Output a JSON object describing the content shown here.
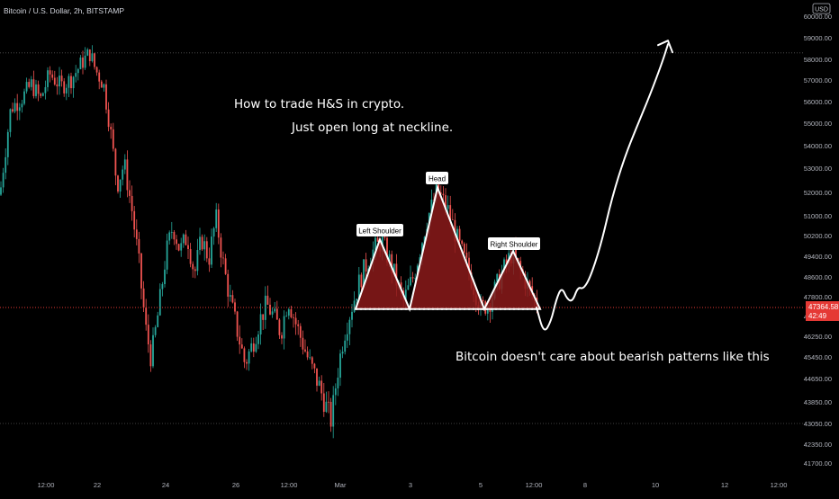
{
  "header": {
    "symbol_title": "Bitcoin / U.S. Dollar, 2h, BITSTAMP",
    "currency": "USD"
  },
  "colors": {
    "background": "#000000",
    "up": "#26a69a",
    "down": "#ef5350",
    "pattern_fill": "#8b1a1a",
    "pattern_stroke": "#ffffff",
    "price_line": "#e53935",
    "price_label_bg": "#e53935",
    "axis_text": "#b2b5be",
    "dotted_line": "#555555"
  },
  "annotations": {
    "title_line1": "How to trade H&S in crypto.",
    "title_line2": "Just open long at neckline.",
    "bottom_text": "Bitcoin doesn't care about bearish patterns like this",
    "left_shoulder": "Left Shoulder",
    "head": "Head",
    "right_shoulder": "Right Shoulder"
  },
  "chart_data": {
    "type": "candlestick",
    "title": "Bitcoin / U.S. Dollar, 2h, BITSTAMP",
    "ylabel": "USD",
    "ylim": [
      41300,
      60300
    ],
    "y_ticks": [
      "60000.00",
      "59000.00",
      "58000.00",
      "57000.00",
      "56000.00",
      "55000.00",
      "54000.00",
      "53000.00",
      "52000.00",
      "51000.00",
      "50200.00",
      "49400.00",
      "48600.00",
      "47800.00",
      "47000.00",
      "46250.00",
      "45450.00",
      "44650.00",
      "43850.00",
      "43050.00",
      "42350.00",
      "41700.00"
    ],
    "x_ticks": [
      "12:00",
      "22",
      "24",
      "26",
      "12:00",
      "Mar",
      "3",
      "5",
      "12:00",
      "8",
      "10",
      "12",
      "12:00"
    ],
    "current_price": "47364.58",
    "countdown": "42:49",
    "dotted_levels": [
      58300,
      43050
    ],
    "pattern": {
      "neckline": 47300,
      "left_shoulder_peak": 50050,
      "head_peak": 52200,
      "right_shoulder_peak": 49600
    },
    "anchors": [
      {
        "x": 0,
        "p": 51900
      },
      {
        "x": 12,
        "p": 55700
      },
      {
        "x": 25,
        "p": 56200
      },
      {
        "x": 35,
        "p": 56800
      },
      {
        "x": 45,
        "p": 56100
      },
      {
        "x": 55,
        "p": 57300
      },
      {
        "x": 68,
        "p": 56700
      },
      {
        "x": 80,
        "p": 57100
      },
      {
        "x": 92,
        "p": 57900
      },
      {
        "x": 100,
        "p": 58300
      },
      {
        "x": 106,
        "p": 57500
      },
      {
        "x": 115,
        "p": 56800
      },
      {
        "x": 122,
        "p": 54900
      },
      {
        "x": 130,
        "p": 52300
      },
      {
        "x": 138,
        "p": 53200
      },
      {
        "x": 146,
        "p": 51400
      },
      {
        "x": 154,
        "p": 49200
      },
      {
        "x": 162,
        "p": 46500
      },
      {
        "x": 168,
        "p": 45400
      },
      {
        "x": 176,
        "p": 47200
      },
      {
        "x": 184,
        "p": 49400
      },
      {
        "x": 192,
        "p": 50600
      },
      {
        "x": 200,
        "p": 49600
      },
      {
        "x": 208,
        "p": 50200
      },
      {
        "x": 216,
        "p": 48700
      },
      {
        "x": 224,
        "p": 50100
      },
      {
        "x": 232,
        "p": 49300
      },
      {
        "x": 240,
        "p": 50900
      },
      {
        "x": 248,
        "p": 49100
      },
      {
        "x": 256,
        "p": 47600
      },
      {
        "x": 264,
        "p": 46400
      },
      {
        "x": 272,
        "p": 45200
      },
      {
        "x": 280,
        "p": 45900
      },
      {
        "x": 288,
        "p": 46800
      },
      {
        "x": 296,
        "p": 47500
      },
      {
        "x": 304,
        "p": 47000
      },
      {
        "x": 312,
        "p": 46400
      },
      {
        "x": 320,
        "p": 47700
      },
      {
        "x": 328,
        "p": 46800
      },
      {
        "x": 336,
        "p": 46000
      },
      {
        "x": 344,
        "p": 45200
      },
      {
        "x": 352,
        "p": 44600
      },
      {
        "x": 360,
        "p": 43900
      },
      {
        "x": 368,
        "p": 43150
      },
      {
        "x": 374,
        "p": 44700
      },
      {
        "x": 382,
        "p": 46300
      },
      {
        "x": 390,
        "p": 47300
      },
      {
        "x": 400,
        "p": 48500
      },
      {
        "x": 412,
        "p": 49500
      },
      {
        "x": 424,
        "p": 50000
      },
      {
        "x": 436,
        "p": 48900
      },
      {
        "x": 448,
        "p": 47600
      },
      {
        "x": 460,
        "p": 48700
      },
      {
        "x": 474,
        "p": 50800
      },
      {
        "x": 486,
        "p": 52100
      },
      {
        "x": 498,
        "p": 51200
      },
      {
        "x": 510,
        "p": 49800
      },
      {
        "x": 522,
        "p": 48700
      },
      {
        "x": 534,
        "p": 47300
      },
      {
        "x": 544,
        "p": 47600
      },
      {
        "x": 556,
        "p": 48600
      },
      {
        "x": 568,
        "p": 49500
      },
      {
        "x": 580,
        "p": 48700
      },
      {
        "x": 592,
        "p": 47800
      },
      {
        "x": 600,
        "p": 47364
      }
    ],
    "projection": [
      {
        "x": 596,
        "p": 47364
      },
      {
        "x": 604,
        "p": 46350
      },
      {
        "x": 612,
        "p": 46800
      },
      {
        "x": 618,
        "p": 47700
      },
      {
        "x": 624,
        "p": 48200
      },
      {
        "x": 630,
        "p": 47700
      },
      {
        "x": 636,
        "p": 47600
      },
      {
        "x": 642,
        "p": 48200
      },
      {
        "x": 648,
        "p": 48100
      },
      {
        "x": 656,
        "p": 48600
      },
      {
        "x": 668,
        "p": 49900
      },
      {
        "x": 680,
        "p": 51800
      },
      {
        "x": 694,
        "p": 53500
      },
      {
        "x": 708,
        "p": 54900
      },
      {
        "x": 722,
        "p": 56300
      },
      {
        "x": 736,
        "p": 57900
      },
      {
        "x": 742,
        "p": 58700
      }
    ]
  }
}
